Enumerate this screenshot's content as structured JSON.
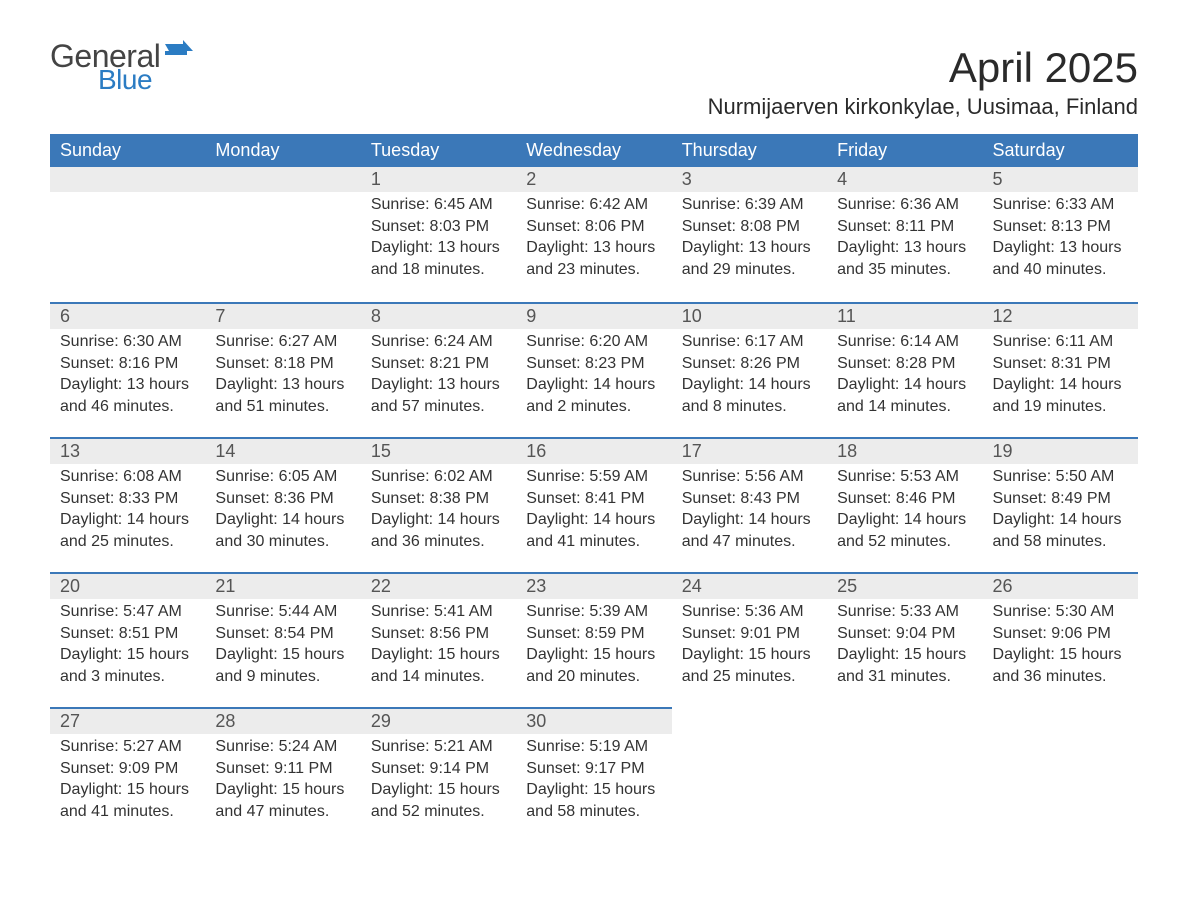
{
  "brand": {
    "word1": "General",
    "word2": "Blue",
    "word1_color": "#444444",
    "word2_color": "#2b7cc3",
    "flag_color": "#2b7cc3"
  },
  "title": "April 2025",
  "location": "Nurmijaerven kirkonkylae, Uusimaa, Finland",
  "colors": {
    "header_bg": "#3b78b8",
    "header_text": "#ffffff",
    "daynum_bg": "#ececec",
    "row_border": "#3b78b8",
    "body_text": "#333333"
  },
  "day_headers": [
    "Sunday",
    "Monday",
    "Tuesday",
    "Wednesday",
    "Thursday",
    "Friday",
    "Saturday"
  ],
  "weeks": [
    [
      null,
      null,
      {
        "n": "1",
        "rise": "Sunrise: 6:45 AM",
        "set": "Sunset: 8:03 PM",
        "d1": "Daylight: 13 hours",
        "d2": "and 18 minutes."
      },
      {
        "n": "2",
        "rise": "Sunrise: 6:42 AM",
        "set": "Sunset: 8:06 PM",
        "d1": "Daylight: 13 hours",
        "d2": "and 23 minutes."
      },
      {
        "n": "3",
        "rise": "Sunrise: 6:39 AM",
        "set": "Sunset: 8:08 PM",
        "d1": "Daylight: 13 hours",
        "d2": "and 29 minutes."
      },
      {
        "n": "4",
        "rise": "Sunrise: 6:36 AM",
        "set": "Sunset: 8:11 PM",
        "d1": "Daylight: 13 hours",
        "d2": "and 35 minutes."
      },
      {
        "n": "5",
        "rise": "Sunrise: 6:33 AM",
        "set": "Sunset: 8:13 PM",
        "d1": "Daylight: 13 hours",
        "d2": "and 40 minutes."
      }
    ],
    [
      {
        "n": "6",
        "rise": "Sunrise: 6:30 AM",
        "set": "Sunset: 8:16 PM",
        "d1": "Daylight: 13 hours",
        "d2": "and 46 minutes."
      },
      {
        "n": "7",
        "rise": "Sunrise: 6:27 AM",
        "set": "Sunset: 8:18 PM",
        "d1": "Daylight: 13 hours",
        "d2": "and 51 minutes."
      },
      {
        "n": "8",
        "rise": "Sunrise: 6:24 AM",
        "set": "Sunset: 8:21 PM",
        "d1": "Daylight: 13 hours",
        "d2": "and 57 minutes."
      },
      {
        "n": "9",
        "rise": "Sunrise: 6:20 AM",
        "set": "Sunset: 8:23 PM",
        "d1": "Daylight: 14 hours",
        "d2": "and 2 minutes."
      },
      {
        "n": "10",
        "rise": "Sunrise: 6:17 AM",
        "set": "Sunset: 8:26 PM",
        "d1": "Daylight: 14 hours",
        "d2": "and 8 minutes."
      },
      {
        "n": "11",
        "rise": "Sunrise: 6:14 AM",
        "set": "Sunset: 8:28 PM",
        "d1": "Daylight: 14 hours",
        "d2": "and 14 minutes."
      },
      {
        "n": "12",
        "rise": "Sunrise: 6:11 AM",
        "set": "Sunset: 8:31 PM",
        "d1": "Daylight: 14 hours",
        "d2": "and 19 minutes."
      }
    ],
    [
      {
        "n": "13",
        "rise": "Sunrise: 6:08 AM",
        "set": "Sunset: 8:33 PM",
        "d1": "Daylight: 14 hours",
        "d2": "and 25 minutes."
      },
      {
        "n": "14",
        "rise": "Sunrise: 6:05 AM",
        "set": "Sunset: 8:36 PM",
        "d1": "Daylight: 14 hours",
        "d2": "and 30 minutes."
      },
      {
        "n": "15",
        "rise": "Sunrise: 6:02 AM",
        "set": "Sunset: 8:38 PM",
        "d1": "Daylight: 14 hours",
        "d2": "and 36 minutes."
      },
      {
        "n": "16",
        "rise": "Sunrise: 5:59 AM",
        "set": "Sunset: 8:41 PM",
        "d1": "Daylight: 14 hours",
        "d2": "and 41 minutes."
      },
      {
        "n": "17",
        "rise": "Sunrise: 5:56 AM",
        "set": "Sunset: 8:43 PM",
        "d1": "Daylight: 14 hours",
        "d2": "and 47 minutes."
      },
      {
        "n": "18",
        "rise": "Sunrise: 5:53 AM",
        "set": "Sunset: 8:46 PM",
        "d1": "Daylight: 14 hours",
        "d2": "and 52 minutes."
      },
      {
        "n": "19",
        "rise": "Sunrise: 5:50 AM",
        "set": "Sunset: 8:49 PM",
        "d1": "Daylight: 14 hours",
        "d2": "and 58 minutes."
      }
    ],
    [
      {
        "n": "20",
        "rise": "Sunrise: 5:47 AM",
        "set": "Sunset: 8:51 PM",
        "d1": "Daylight: 15 hours",
        "d2": "and 3 minutes."
      },
      {
        "n": "21",
        "rise": "Sunrise: 5:44 AM",
        "set": "Sunset: 8:54 PM",
        "d1": "Daylight: 15 hours",
        "d2": "and 9 minutes."
      },
      {
        "n": "22",
        "rise": "Sunrise: 5:41 AM",
        "set": "Sunset: 8:56 PM",
        "d1": "Daylight: 15 hours",
        "d2": "and 14 minutes."
      },
      {
        "n": "23",
        "rise": "Sunrise: 5:39 AM",
        "set": "Sunset: 8:59 PM",
        "d1": "Daylight: 15 hours",
        "d2": "and 20 minutes."
      },
      {
        "n": "24",
        "rise": "Sunrise: 5:36 AM",
        "set": "Sunset: 9:01 PM",
        "d1": "Daylight: 15 hours",
        "d2": "and 25 minutes."
      },
      {
        "n": "25",
        "rise": "Sunrise: 5:33 AM",
        "set": "Sunset: 9:04 PM",
        "d1": "Daylight: 15 hours",
        "d2": "and 31 minutes."
      },
      {
        "n": "26",
        "rise": "Sunrise: 5:30 AM",
        "set": "Sunset: 9:06 PM",
        "d1": "Daylight: 15 hours",
        "d2": "and 36 minutes."
      }
    ],
    [
      {
        "n": "27",
        "rise": "Sunrise: 5:27 AM",
        "set": "Sunset: 9:09 PM",
        "d1": "Daylight: 15 hours",
        "d2": "and 41 minutes."
      },
      {
        "n": "28",
        "rise": "Sunrise: 5:24 AM",
        "set": "Sunset: 9:11 PM",
        "d1": "Daylight: 15 hours",
        "d2": "and 47 minutes."
      },
      {
        "n": "29",
        "rise": "Sunrise: 5:21 AM",
        "set": "Sunset: 9:14 PM",
        "d1": "Daylight: 15 hours",
        "d2": "and 52 minutes."
      },
      {
        "n": "30",
        "rise": "Sunrise: 5:19 AM",
        "set": "Sunset: 9:17 PM",
        "d1": "Daylight: 15 hours",
        "d2": "and 58 minutes."
      },
      null,
      null,
      null
    ]
  ]
}
